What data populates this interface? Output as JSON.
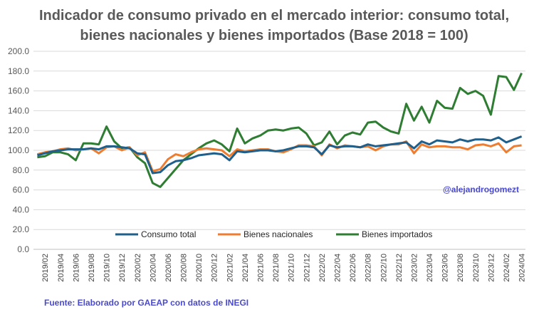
{
  "chart_data": {
    "type": "line",
    "title": "Indicador de consumo privado en el mercado interior: consumo total, bienes nacionales y bienes importados (Base 2018 = 100)",
    "ylim": [
      0,
      200
    ],
    "yticks": [
      "0.0",
      "20.0",
      "40.0",
      "60.0",
      "80.0",
      "100.0",
      "120.0",
      "140.0",
      "160.0",
      "180.0",
      "200.0"
    ],
    "grid": true,
    "legend_position": "bottom-inside",
    "x": [
      "2019/01",
      "2019/02",
      "2019/03",
      "2019/04",
      "2019/05",
      "2019/06",
      "2019/07",
      "2019/08",
      "2019/09",
      "2019/10",
      "2019/11",
      "2019/12",
      "2020/01",
      "2020/02",
      "2020/03",
      "2020/04",
      "2020/05",
      "2020/06",
      "2020/07",
      "2020/08",
      "2020/09",
      "2020/10",
      "2020/11",
      "2020/12",
      "2021/01",
      "2021/02",
      "2021/03",
      "2021/04",
      "2021/05",
      "2021/06",
      "2021/07",
      "2021/08",
      "2021/09",
      "2021/10",
      "2021/11",
      "2021/12",
      "2022/01",
      "2022/02",
      "2022/03",
      "2022/04",
      "2022/05",
      "2022/06",
      "2022/07",
      "2022/08",
      "2022/09",
      "2022/10",
      "2022/11",
      "2022/12",
      "2023/01",
      "2023/02",
      "2023/03",
      "2023/04",
      "2023/05",
      "2023/06",
      "2023/07",
      "2023/08",
      "2023/09",
      "2023/10",
      "2023/11",
      "2023/12",
      "2024/01",
      "2024/02",
      "2024/03",
      "2024/04"
    ],
    "xtick_labels": [
      "2019/02",
      "2019/04",
      "2019/06",
      "2019/08",
      "2019/10",
      "2019/12",
      "2020/02",
      "2020/04",
      "2020/06",
      "2020/08",
      "2020/10",
      "2020/12",
      "2021/02",
      "2021/04",
      "2021/06",
      "2021/08",
      "2021/10",
      "2021/12",
      "2022/02",
      "2022/04",
      "2022/06",
      "2022/08",
      "2022/10",
      "2022/12",
      "2023/02",
      "2023/04",
      "2023/06",
      "2023/08",
      "2023/10",
      "2023/12",
      "2024/02",
      "2024/04"
    ],
    "series": [
      {
        "name": "Consumo total",
        "color": "#1f5f8b",
        "values": [
          95,
          97,
          99,
          100,
          101,
          101,
          101,
          102,
          101,
          104,
          104,
          103,
          102,
          97,
          96,
          77,
          78,
          85,
          89,
          90,
          92,
          95,
          96,
          97,
          96,
          90,
          99,
          98,
          99,
          100,
          100,
          99,
          100,
          102,
          104,
          104,
          103,
          96,
          105,
          103,
          104,
          104,
          103,
          106,
          104,
          105,
          106,
          107,
          108,
          102,
          109,
          106,
          110,
          109,
          108,
          111,
          109,
          111,
          111,
          110,
          113,
          108,
          111,
          114
        ]
      },
      {
        "name": "Bienes nacionales",
        "color": "#ed7d31",
        "values": [
          96,
          98,
          99,
          101,
          102,
          100,
          101,
          102,
          97,
          103,
          104,
          100,
          103,
          95,
          98,
          79,
          81,
          91,
          96,
          94,
          98,
          101,
          102,
          101,
          100,
          94,
          101,
          99,
          100,
          101,
          101,
          99,
          98,
          101,
          105,
          105,
          104,
          95,
          106,
          102,
          105,
          104,
          103,
          104,
          100,
          104,
          106,
          106,
          109,
          97,
          106,
          103,
          104,
          104,
          103,
          103,
          101,
          105,
          106,
          104,
          107,
          98,
          104,
          105
        ]
      },
      {
        "name": "Bienes importados",
        "color": "#2e7d32",
        "values": [
          93,
          94,
          98,
          98,
          96,
          90,
          107,
          107,
          106,
          124,
          109,
          102,
          103,
          93,
          87,
          67,
          63,
          72,
          81,
          90,
          96,
          102,
          107,
          110,
          106,
          99,
          122,
          107,
          112,
          115,
          120,
          121,
          120,
          122,
          123,
          117,
          105,
          108,
          119,
          106,
          115,
          118,
          116,
          128,
          129,
          123,
          119,
          117,
          147,
          130,
          144,
          128,
          150,
          143,
          142,
          163,
          157,
          160,
          155,
          136,
          175,
          174,
          161,
          178
        ]
      }
    ]
  },
  "annotation_handle": "@alejandrogomezt",
  "source_note": "Fuente: Elaborado por GAEAP con datos de INEGI"
}
